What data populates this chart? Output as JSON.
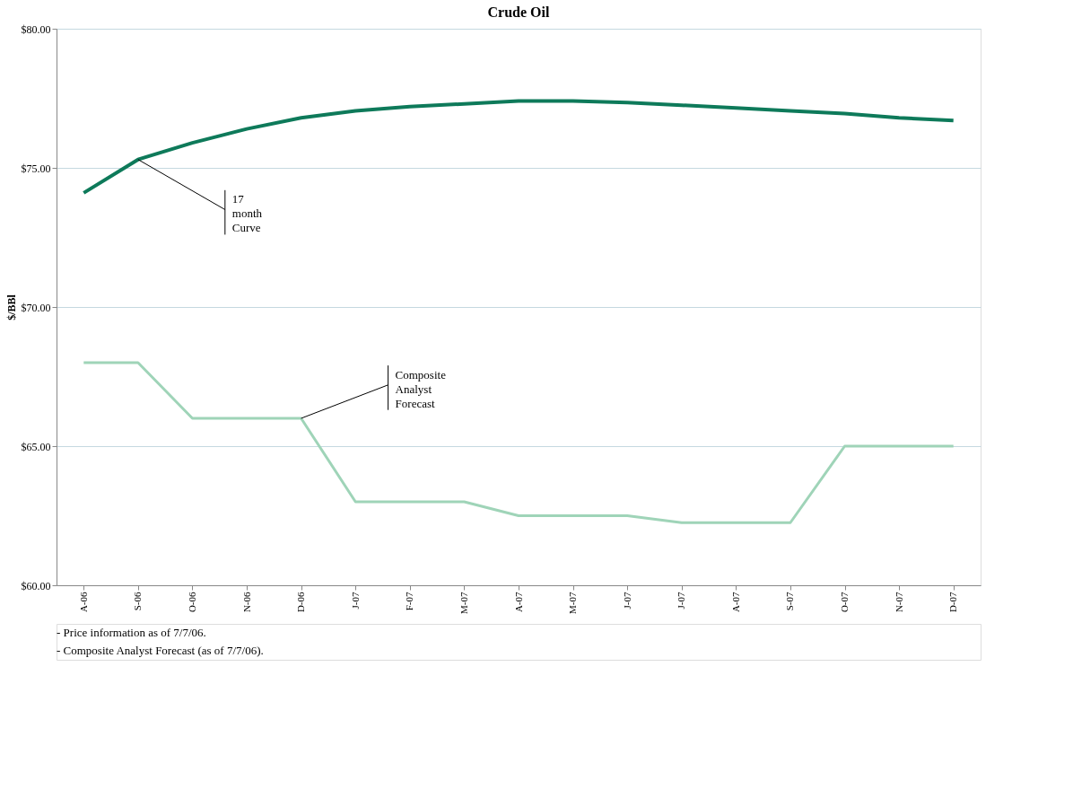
{
  "chart_data": {
    "type": "line",
    "title": "Crude Oil",
    "ylabel": "$/BBl",
    "categories": [
      "A-06",
      "S-06",
      "O-06",
      "N-06",
      "D-06",
      "J-07",
      "F-07",
      "M-07",
      "A-07",
      "M-07",
      "J-07",
      "J-07",
      "A-07",
      "S-07",
      "O-07",
      "N-07",
      "D-07"
    ],
    "series": [
      {
        "color": "#0e7a5a",
        "values": [
          74.1,
          75.3,
          75.9,
          76.4,
          76.8,
          77.05,
          77.2,
          77.3,
          77.4,
          77.4,
          77.35,
          77.25,
          77.15,
          77.05,
          76.95,
          76.8,
          76.7
        ]
      },
      {
        "color": "#9fd4b8",
        "values": [
          68,
          68,
          66,
          66,
          66,
          63,
          63,
          63,
          62.5,
          62.5,
          62.5,
          62.25,
          62.25,
          62.25,
          65,
          65,
          65
        ]
      }
    ],
    "ylim": [
      60,
      80
    ],
    "yticks": [
      {
        "value": 60,
        "label": "$60.00"
      },
      {
        "value": 65,
        "label": "$65.00"
      },
      {
        "value": 70,
        "label": "$70.00"
      },
      {
        "value": 75,
        "label": "$75.00"
      },
      {
        "value": 80,
        "label": "$80.00"
      }
    ],
    "grid": "y",
    "legend": false,
    "marker": "none",
    "line_style": "solid",
    "annotations": [
      {
        "text": "17 month Curve",
        "x": "S-06",
        "y": 75.3
      },
      {
        "text": "Composite Analyst Forecast",
        "x": "D-06",
        "y": 66
      },
      "- Price information as of 7/7/06.",
      "- Composite Analyst Forecast (as of 7/7/06)."
    ]
  }
}
